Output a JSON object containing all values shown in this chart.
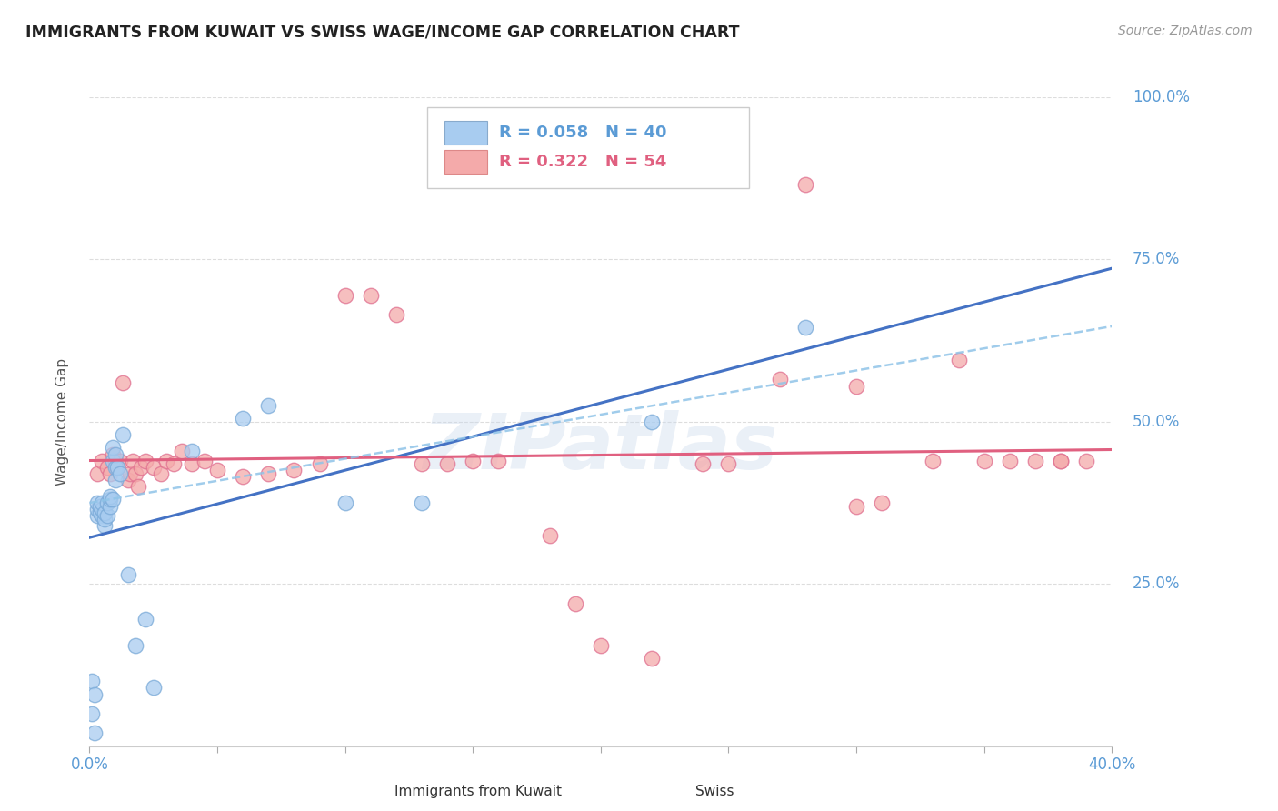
{
  "title": "IMMIGRANTS FROM KUWAIT VS SWISS WAGE/INCOME GAP CORRELATION CHART",
  "source": "Source: ZipAtlas.com",
  "ylabel_label": "Wage/Income Gap",
  "x_min": 0.0,
  "x_max": 0.4,
  "y_min": 0.0,
  "y_max": 1.0,
  "series1_label": "Immigrants from Kuwait",
  "series1_color": "#A8CCF0",
  "series1_edge_color": "#7AAAD8",
  "series1_line_color": "#4472C4",
  "series1_R": 0.058,
  "series1_N": 40,
  "series2_label": "Swiss",
  "series2_color": "#F4AAAA",
  "series2_edge_color": "#E07090",
  "series2_line_color": "#E06080",
  "series2_R": 0.322,
  "series2_N": 54,
  "dash_line_color": "#90C4E8",
  "background_color": "#FFFFFF",
  "grid_color": "#DDDDDD",
  "title_color": "#222222",
  "tick_label_color": "#5B9BD5",
  "legend_text_color1": "#5B9BD5",
  "legend_text_color2": "#E06080",
  "watermark": "ZIPatlas",
  "series1_x": [
    0.001,
    0.001,
    0.002,
    0.002,
    0.003,
    0.003,
    0.003,
    0.004,
    0.004,
    0.005,
    0.005,
    0.005,
    0.006,
    0.006,
    0.006,
    0.007,
    0.007,
    0.008,
    0.008,
    0.008,
    0.009,
    0.009,
    0.009,
    0.01,
    0.01,
    0.01,
    0.011,
    0.012,
    0.013,
    0.015,
    0.018,
    0.022,
    0.025,
    0.04,
    0.06,
    0.07,
    0.1,
    0.13,
    0.22,
    0.28
  ],
  "series1_y": [
    0.05,
    0.1,
    0.02,
    0.08,
    0.355,
    0.365,
    0.375,
    0.36,
    0.37,
    0.355,
    0.365,
    0.375,
    0.34,
    0.35,
    0.36,
    0.355,
    0.375,
    0.37,
    0.38,
    0.385,
    0.38,
    0.44,
    0.46,
    0.41,
    0.43,
    0.45,
    0.43,
    0.42,
    0.48,
    0.265,
    0.155,
    0.195,
    0.09,
    0.455,
    0.505,
    0.525,
    0.375,
    0.375,
    0.5,
    0.645
  ],
  "series2_x": [
    0.003,
    0.005,
    0.007,
    0.008,
    0.009,
    0.01,
    0.011,
    0.012,
    0.013,
    0.015,
    0.016,
    0.017,
    0.018,
    0.019,
    0.02,
    0.022,
    0.025,
    0.028,
    0.03,
    0.033,
    0.036,
    0.04,
    0.045,
    0.05,
    0.06,
    0.07,
    0.08,
    0.09,
    0.1,
    0.11,
    0.12,
    0.13,
    0.14,
    0.15,
    0.16,
    0.18,
    0.19,
    0.2,
    0.22,
    0.24,
    0.25,
    0.27,
    0.28,
    0.3,
    0.3,
    0.31,
    0.33,
    0.34,
    0.35,
    0.36,
    0.37,
    0.38,
    0.38,
    0.39
  ],
  "series2_y": [
    0.42,
    0.44,
    0.43,
    0.42,
    0.45,
    0.44,
    0.43,
    0.44,
    0.56,
    0.41,
    0.42,
    0.44,
    0.42,
    0.4,
    0.43,
    0.44,
    0.43,
    0.42,
    0.44,
    0.435,
    0.455,
    0.435,
    0.44,
    0.425,
    0.415,
    0.42,
    0.425,
    0.435,
    0.695,
    0.695,
    0.665,
    0.435,
    0.435,
    0.44,
    0.44,
    0.325,
    0.22,
    0.155,
    0.135,
    0.435,
    0.435,
    0.565,
    0.865,
    0.555,
    0.37,
    0.375,
    0.44,
    0.595,
    0.44,
    0.44,
    0.44,
    0.44,
    0.44,
    0.44
  ],
  "dash_line_start_y": 0.375,
  "dash_line_slope": 0.68
}
